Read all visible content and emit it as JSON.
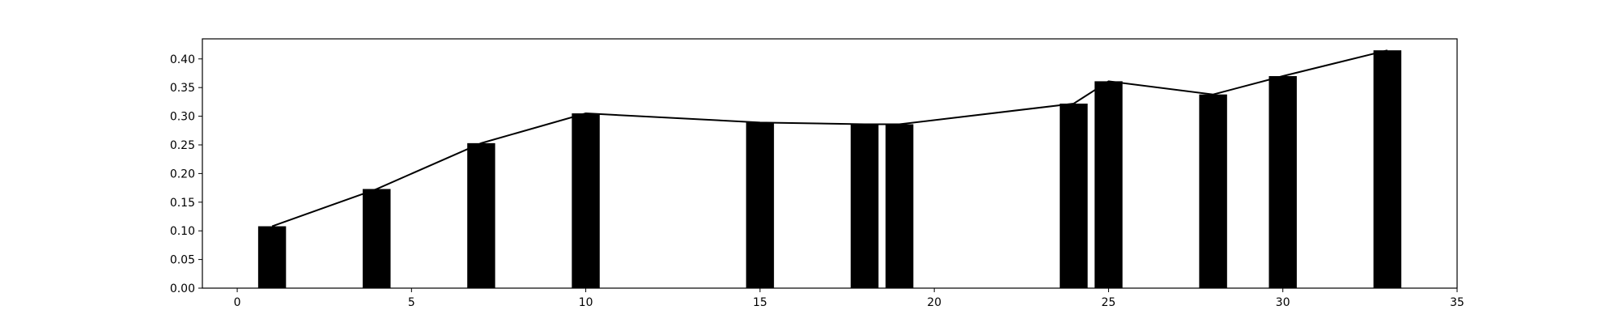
{
  "chart_data": {
    "type": "bar",
    "title": "",
    "xlabel": "",
    "ylabel": "",
    "xlim": [
      -1,
      35
    ],
    "ylim": [
      0,
      0.435
    ],
    "bar_width": 0.8,
    "x_ticks": [
      0,
      5,
      10,
      15,
      20,
      25,
      30,
      35
    ],
    "y_ticks": [
      0.0,
      0.05,
      0.1,
      0.15,
      0.2,
      0.25,
      0.3,
      0.35,
      0.4
    ],
    "x_tick_labels": [
      "0",
      "5",
      "10",
      "15",
      "20",
      "25",
      "30",
      "35"
    ],
    "y_tick_labels": [
      "0.00",
      "0.05",
      "0.10",
      "0.15",
      "0.20",
      "0.25",
      "0.30",
      "0.35",
      "0.40"
    ],
    "grid": false,
    "bar_color": "#000000",
    "line_color": "#000000",
    "series": [
      {
        "kind": "bar",
        "x": [
          1,
          4,
          7,
          10,
          15,
          18,
          19,
          24,
          25,
          28,
          30,
          33
        ],
        "values": [
          0.108,
          0.173,
          0.253,
          0.305,
          0.289,
          0.286,
          0.286,
          0.322,
          0.361,
          0.338,
          0.37,
          0.415
        ]
      },
      {
        "kind": "line",
        "x": [
          1,
          4,
          7,
          10,
          15,
          18,
          19,
          24,
          25,
          28,
          30,
          33
        ],
        "values": [
          0.108,
          0.173,
          0.253,
          0.305,
          0.289,
          0.286,
          0.286,
          0.322,
          0.361,
          0.338,
          0.37,
          0.415
        ]
      }
    ]
  }
}
